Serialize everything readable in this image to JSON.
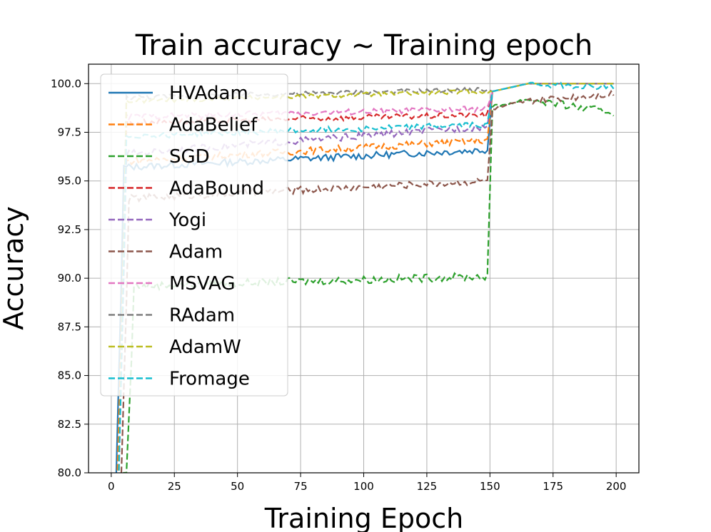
{
  "chart_data": {
    "type": "line",
    "title": "Train accuracy ~ Training epoch",
    "xlabel": "Training Epoch",
    "ylabel": "Accuracy",
    "xlim": [
      -9,
      209
    ],
    "ylim": [
      80.0,
      101.0
    ],
    "xticks": [
      0,
      25,
      50,
      75,
      100,
      125,
      150,
      175,
      200
    ],
    "yticks": [
      80.0,
      82.5,
      85.0,
      87.5,
      90.0,
      92.5,
      95.0,
      97.5,
      100.0
    ],
    "xtick_labels": [
      "0",
      "25",
      "50",
      "75",
      "100",
      "125",
      "150",
      "175",
      "200"
    ],
    "ytick_labels": [
      "80.0",
      "82.5",
      "85.0",
      "87.5",
      "90.0",
      "92.5",
      "95.0",
      "97.5",
      "100.0"
    ],
    "grid": true,
    "legend_position": "upper-left",
    "series": [
      {
        "name": "HVAdam",
        "color": "#1f77b4",
        "dashed": false,
        "start": 2,
        "phase1_start": 95.7,
        "phase1_end": 96.6,
        "phase2_end": 100.0,
        "final": 100.0,
        "noise": 0.18
      },
      {
        "name": "AdaBelief",
        "color": "#ff7f0e",
        "dashed": true,
        "start": 2.5,
        "phase1_start": 96.0,
        "phase1_end": 97.1,
        "phase2_end": 100.0,
        "final": 100.0,
        "noise": 0.18
      },
      {
        "name": "SGD",
        "color": "#2ca02c",
        "dashed": true,
        "start": 6,
        "phase1_start": 89.6,
        "phase1_end": 90.1,
        "phase2_end": 99.2,
        "final": 98.5,
        "noise": 0.2
      },
      {
        "name": "AdaBound",
        "color": "#d62728",
        "dashed": true,
        "start": 3,
        "phase1_start": 98.0,
        "phase1_end": 98.4,
        "phase2_end": 100.0,
        "final": 100.0,
        "noise": 0.15
      },
      {
        "name": "Yogi",
        "color": "#9467bd",
        "dashed": true,
        "start": 3,
        "phase1_start": 96.4,
        "phase1_end": 97.8,
        "phase2_end": 100.0,
        "final": 100.0,
        "noise": 0.18
      },
      {
        "name": "Adam",
        "color": "#8c564b",
        "dashed": true,
        "start": 4,
        "phase1_start": 94.1,
        "phase1_end": 95.0,
        "phase2_end": 99.1,
        "final": 99.5,
        "noise": 0.18
      },
      {
        "name": "MSVAG",
        "color": "#e377c2",
        "dashed": true,
        "start": 3,
        "phase1_start": 98.3,
        "phase1_end": 98.7,
        "phase2_end": 100.0,
        "final": 100.0,
        "noise": 0.15
      },
      {
        "name": "RAdam",
        "color": "#7f7f7f",
        "dashed": true,
        "start": 3,
        "phase1_start": 99.3,
        "phase1_end": 99.7,
        "phase2_end": 100.0,
        "final": 100.0,
        "noise": 0.12
      },
      {
        "name": "AdamW",
        "color": "#bcbd22",
        "dashed": true,
        "start": 3,
        "phase1_start": 99.1,
        "phase1_end": 99.6,
        "phase2_end": 100.0,
        "final": 100.0,
        "noise": 0.12
      },
      {
        "name": "Fromage",
        "color": "#17becf",
        "dashed": true,
        "start": 3,
        "phase1_start": 97.3,
        "phase1_end": 97.9,
        "phase2_end": 100.0,
        "final": 99.8,
        "noise": 0.15
      }
    ]
  }
}
